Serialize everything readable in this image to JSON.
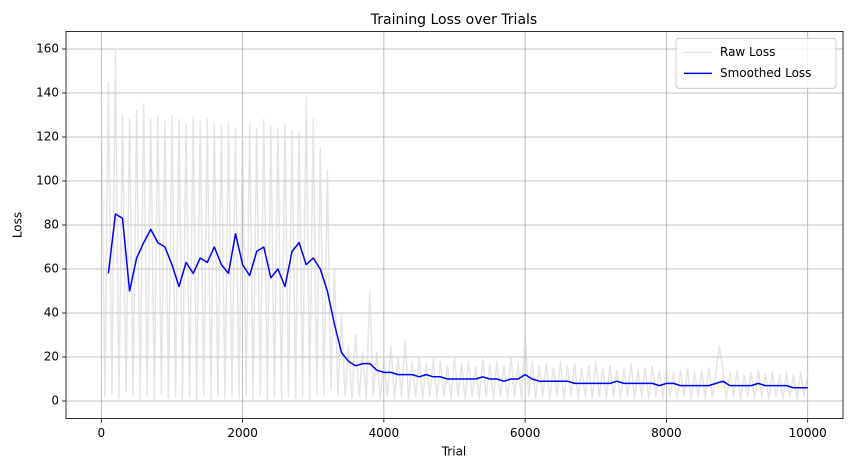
{
  "chart_data": {
    "type": "line",
    "title": "Training Loss over Trials",
    "x_label": "Trial",
    "y_label": "Loss",
    "xlim": [
      -500,
      10500
    ],
    "ylim": [
      -8,
      168
    ],
    "xticks": [
      0,
      2000,
      4000,
      6000,
      8000,
      10000
    ],
    "yticks": [
      0,
      20,
      40,
      60,
      80,
      100,
      120,
      140,
      160
    ],
    "grid": true,
    "legend": "upper right",
    "series": [
      {
        "name": "Raw Loss",
        "color": "#d3d3d3",
        "opacity": 0.6,
        "x": [
          0,
          50,
          100,
          150,
          200,
          250,
          300,
          350,
          400,
          450,
          500,
          550,
          600,
          650,
          700,
          750,
          800,
          850,
          900,
          950,
          1000,
          1050,
          1100,
          1150,
          1200,
          1250,
          1300,
          1350,
          1400,
          1450,
          1500,
          1550,
          1600,
          1650,
          1700,
          1750,
          1800,
          1850,
          1900,
          1950,
          2000,
          2050,
          2100,
          2150,
          2200,
          2250,
          2300,
          2350,
          2400,
          2450,
          2500,
          2550,
          2600,
          2650,
          2700,
          2750,
          2800,
          2850,
          2900,
          2950,
          3000,
          3050,
          3100,
          3150,
          3200,
          3250,
          3300,
          3350,
          3400,
          3450,
          3500,
          3550,
          3600,
          3650,
          3700,
          3750,
          3800,
          3850,
          3900,
          3950,
          4000,
          4050,
          4100,
          4150,
          4200,
          4250,
          4300,
          4350,
          4400,
          4450,
          4500,
          4550,
          4600,
          4650,
          4700,
          4750,
          4800,
          4850,
          4900,
          4950,
          5000,
          5050,
          5100,
          5150,
          5200,
          5250,
          5300,
          5350,
          5400,
          5450,
          5500,
          5550,
          5600,
          5650,
          5700,
          5750,
          5800,
          5850,
          5900,
          5950,
          6000,
          6050,
          6100,
          6150,
          6200,
          6250,
          6300,
          6350,
          6400,
          6450,
          6500,
          6550,
          6600,
          6650,
          6700,
          6750,
          6800,
          6850,
          6900,
          6950,
          7000,
          7050,
          7100,
          7150,
          7200,
          7250,
          7300,
          7350,
          7400,
          7450,
          7500,
          7550,
          7600,
          7650,
          7700,
          7750,
          7800,
          7850,
          7900,
          7950,
          8000,
          8050,
          8100,
          8150,
          8200,
          8250,
          8300,
          8350,
          8400,
          8450,
          8500,
          8550,
          8600,
          8650,
          8700,
          8750,
          8800,
          8850,
          8900,
          8950,
          9000,
          9050,
          9100,
          9150,
          9200,
          9250,
          9300,
          9350,
          9400,
          9450,
          9500,
          9550,
          9600,
          9650,
          9700,
          9750,
          9800,
          9850,
          9900,
          9950,
          10000
        ],
        "values": [
          140,
          2,
          145,
          3,
          160,
          1,
          130,
          4,
          128,
          2,
          132,
          1,
          135,
          2,
          128,
          1,
          130,
          3,
          127,
          1,
          130,
          2,
          128,
          1,
          126,
          2,
          129,
          1,
          127,
          2,
          128,
          1,
          126,
          2,
          125,
          1,
          127,
          2,
          124,
          1,
          125,
          2,
          126,
          1,
          124,
          2,
          128,
          1,
          125,
          2,
          124,
          1,
          126,
          2,
          123,
          1,
          122,
          2,
          138,
          1,
          128,
          3,
          115,
          2,
          105,
          5,
          60,
          3,
          40,
          2,
          25,
          1,
          30,
          2,
          22,
          1,
          50,
          2,
          22,
          1,
          20,
          2,
          25,
          1,
          20,
          2,
          28,
          1,
          18,
          2,
          20,
          1,
          17,
          2,
          19,
          1,
          18,
          2,
          16,
          1,
          20,
          2,
          17,
          1,
          18,
          2,
          16,
          1,
          19,
          2,
          17,
          1,
          18,
          2,
          16,
          1,
          20,
          2,
          17,
          1,
          30,
          2,
          18,
          1,
          16,
          2,
          17,
          1,
          15,
          2,
          18,
          1,
          16,
          2,
          17,
          1,
          15,
          2,
          16,
          1,
          18,
          2,
          15,
          1,
          16,
          2,
          14,
          1,
          15,
          2,
          17,
          1,
          14,
          2,
          15,
          1,
          16,
          2,
          14,
          1,
          15,
          2,
          13,
          1,
          14,
          2,
          15,
          1,
          13,
          2,
          14,
          1,
          15,
          2,
          13,
          25,
          14,
          1,
          13,
          2,
          14,
          1,
          12,
          2,
          13,
          1,
          14,
          2,
          12,
          1,
          13,
          2,
          12,
          1,
          13,
          2,
          12,
          1,
          13,
          2,
          12
        ]
      },
      {
        "name": "Smoothed Loss",
        "color": "#0000ff",
        "opacity": 1,
        "x": [
          100,
          200,
          300,
          400,
          500,
          600,
          700,
          800,
          900,
          1000,
          1100,
          1200,
          1300,
          1400,
          1500,
          1600,
          1700,
          1800,
          1900,
          2000,
          2100,
          2200,
          2300,
          2400,
          2500,
          2600,
          2700,
          2800,
          2900,
          3000,
          3100,
          3200,
          3300,
          3400,
          3500,
          3600,
          3700,
          3800,
          3900,
          4000,
          4100,
          4200,
          4300,
          4400,
          4500,
          4600,
          4700,
          4800,
          4900,
          5000,
          5100,
          5200,
          5300,
          5400,
          5500,
          5600,
          5700,
          5800,
          5900,
          6000,
          6100,
          6200,
          6300,
          6400,
          6500,
          6600,
          6700,
          6800,
          6900,
          7000,
          7100,
          7200,
          7300,
          7400,
          7500,
          7600,
          7700,
          7800,
          7900,
          8000,
          8100,
          8200,
          8300,
          8400,
          8500,
          8600,
          8700,
          8800,
          8900,
          9000,
          9100,
          9200,
          9300,
          9400,
          9500,
          9600,
          9700,
          9800,
          9900,
          10000
        ],
        "values": [
          58,
          85,
          83,
          50,
          65,
          72,
          78,
          72,
          70,
          62,
          52,
          63,
          58,
          65,
          63,
          70,
          62,
          58,
          76,
          62,
          57,
          68,
          70,
          56,
          60,
          52,
          68,
          72,
          62,
          65,
          60,
          50,
          35,
          22,
          18,
          16,
          17,
          17,
          14,
          13,
          13,
          12,
          12,
          12,
          11,
          12,
          11,
          11,
          10,
          10,
          10,
          10,
          10,
          11,
          10,
          10,
          9,
          10,
          10,
          12,
          10,
          9,
          9,
          9,
          9,
          9,
          8,
          8,
          8,
          8,
          8,
          8,
          9,
          8,
          8,
          8,
          8,
          8,
          7,
          8,
          8,
          7,
          7,
          7,
          7,
          7,
          8,
          9,
          7,
          7,
          7,
          7,
          8,
          7,
          7,
          7,
          7,
          6,
          6,
          6
        ]
      }
    ]
  }
}
